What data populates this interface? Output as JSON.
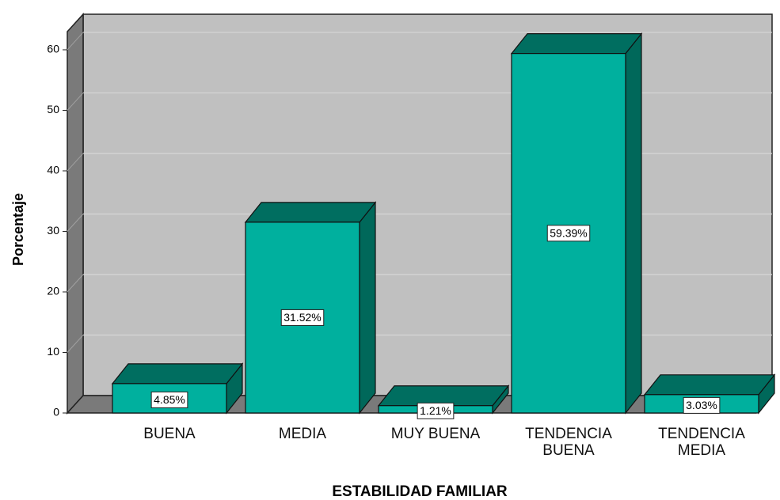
{
  "chart_data": {
    "type": "bar3d",
    "categories": [
      "BUENA",
      "MEDIA",
      "MUY BUENA",
      "TENDENCIA BUENA",
      "TENDENCIA MEDIA"
    ],
    "values": [
      4.85,
      31.52,
      1.21,
      59.39,
      3.03
    ],
    "value_labels": [
      "4.85%",
      "31.52%",
      "1.21%",
      "59.39%",
      "3.03%"
    ],
    "color": "#00b09e",
    "ylabel": "Porcentaje",
    "xlabel": "ESTABILIDAD FAMILIAR",
    "ylim": [
      0,
      63
    ],
    "yticks": [
      0,
      10,
      20,
      30,
      40,
      50,
      60
    ],
    "grid": true
  }
}
